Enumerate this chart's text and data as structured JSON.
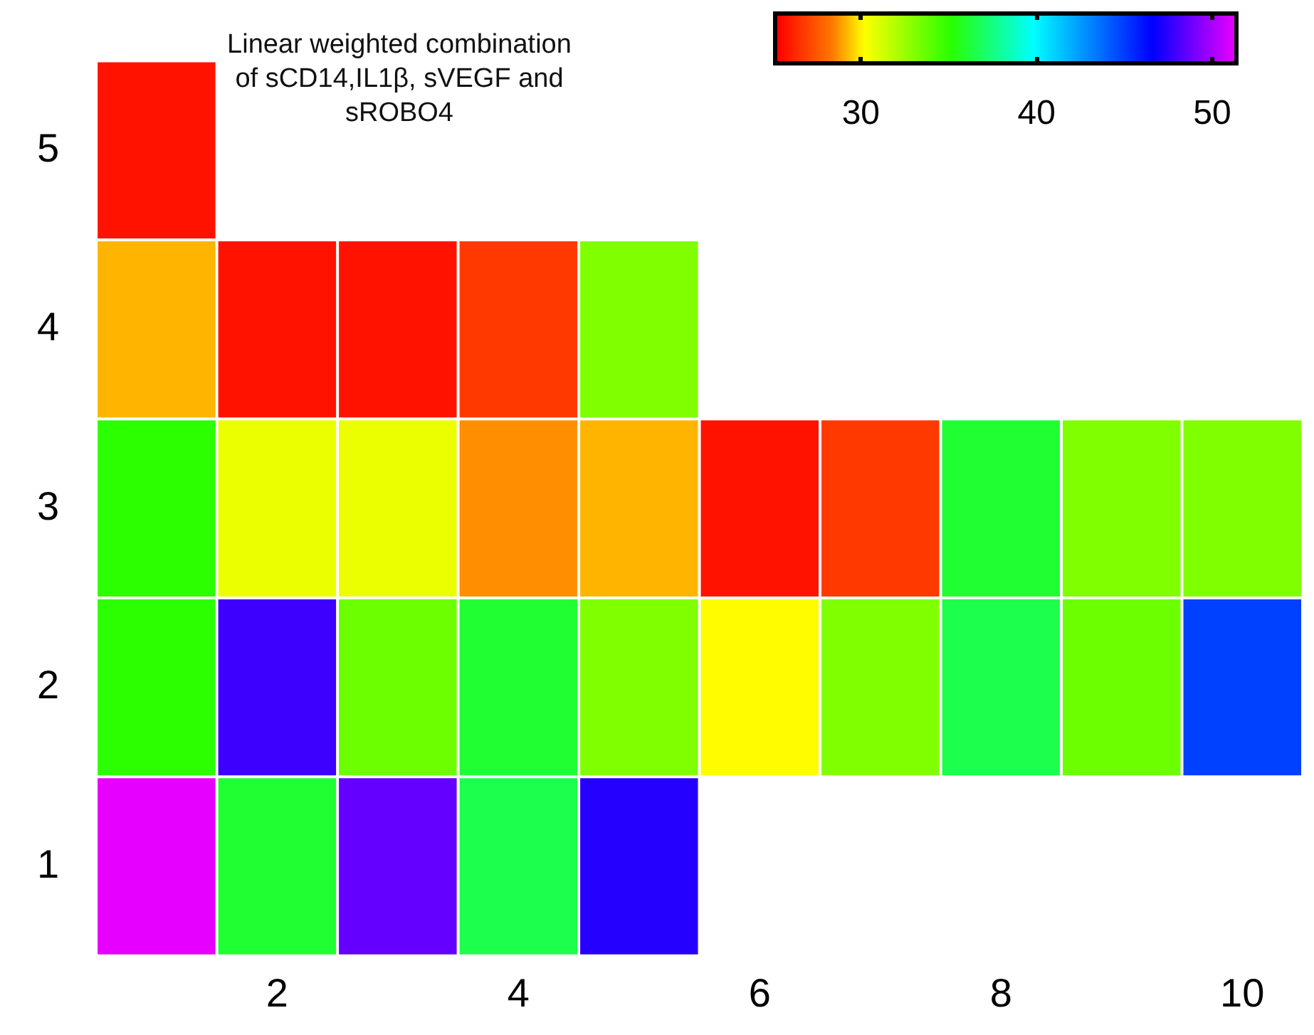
{
  "chart_data": {
    "type": "heatmap",
    "title": "Linear weighted combination of sCD14,IL1β, sVEGF and sROBO4",
    "categories": [
      null,
      "2",
      null,
      "4",
      null,
      "6",
      null,
      "8",
      null,
      "10"
    ],
    "y_categories": [
      "5",
      "4",
      "3",
      "2",
      "1"
    ],
    "cells": [
      [
        25.5,
        null,
        null,
        null,
        null,
        null,
        null,
        null,
        null,
        null
      ],
      [
        29,
        25.5,
        25.5,
        26.5,
        33,
        null,
        null,
        null,
        null,
        null
      ],
      [
        35,
        30.5,
        30.5,
        28.5,
        29,
        25.5,
        26.5,
        36,
        33,
        33
      ],
      [
        35,
        48,
        33.5,
        36,
        33,
        30,
        33,
        36.5,
        33.5,
        45
      ],
      [
        51.5,
        36,
        48.8,
        36.5,
        47.5,
        null,
        null,
        null,
        null,
        null
      ]
    ],
    "clim": [
      25,
      51.5
    ],
    "cticks": [
      30,
      40,
      50
    ]
  }
}
